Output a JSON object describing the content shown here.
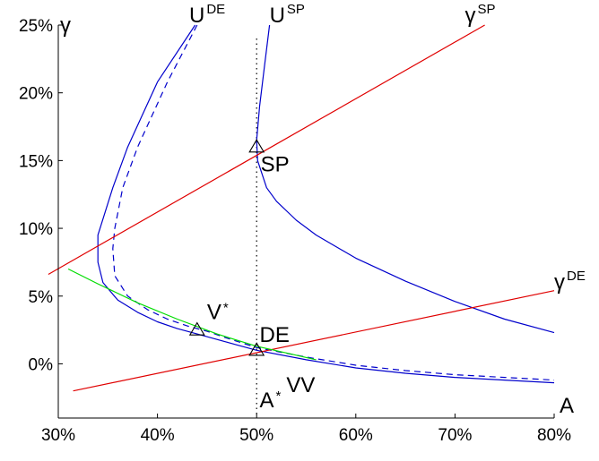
{
  "chart_data": {
    "type": "line",
    "xlabel": "A",
    "ylabel": "γ",
    "xlim": [
      0.3,
      0.8
    ],
    "ylim": [
      -0.04,
      0.25
    ],
    "x_ticks": [
      0.3,
      0.4,
      0.5,
      0.6,
      0.7,
      0.8
    ],
    "x_tick_labels": [
      "30%",
      "40%",
      "50%",
      "60%",
      "70%",
      "80%"
    ],
    "y_ticks": [
      0.0,
      0.05,
      0.1,
      0.15,
      0.2,
      0.25
    ],
    "y_tick_labels": [
      "0%",
      "5%",
      "10%",
      "15%",
      "20%",
      "25%"
    ],
    "grid": false,
    "colors": {
      "U_DE": "#0000cc",
      "U_DE_dashed": "#0000cc",
      "U_SP": "#0000cc",
      "gamma_SP": "#e00000",
      "gamma_DE": "#e00000",
      "VV": "#00dd00",
      "vertical_line": "#000000",
      "marker": "#000000"
    },
    "series": [
      {
        "key": "U_DE",
        "style": "solid",
        "points": [
          [
            0.438,
            0.25
          ],
          [
            0.4,
            0.208
          ],
          [
            0.37,
            0.16
          ],
          [
            0.355,
            0.13
          ],
          [
            0.34,
            0.095
          ],
          [
            0.34,
            0.075
          ],
          [
            0.345,
            0.06
          ],
          [
            0.36,
            0.047
          ],
          [
            0.38,
            0.038
          ],
          [
            0.4,
            0.031
          ],
          [
            0.42,
            0.026
          ],
          [
            0.44,
            0.022
          ],
          [
            0.46,
            0.018
          ],
          [
            0.48,
            0.014
          ],
          [
            0.5,
            0.01
          ],
          [
            0.55,
            0.003
          ],
          [
            0.6,
            -0.003
          ],
          [
            0.65,
            -0.007
          ],
          [
            0.7,
            -0.01
          ],
          [
            0.75,
            -0.012
          ],
          [
            0.8,
            -0.014
          ]
        ]
      },
      {
        "key": "U_DE_dashed",
        "style": "dashed",
        "points": [
          [
            0.44,
            0.25
          ],
          [
            0.41,
            0.208
          ],
          [
            0.38,
            0.16
          ],
          [
            0.365,
            0.13
          ],
          [
            0.357,
            0.1
          ],
          [
            0.355,
            0.085
          ],
          [
            0.357,
            0.065
          ],
          [
            0.37,
            0.05
          ],
          [
            0.39,
            0.04
          ],
          [
            0.41,
            0.033
          ],
          [
            0.43,
            0.028
          ],
          [
            0.45,
            0.024
          ],
          [
            0.47,
            0.019
          ],
          [
            0.5,
            0.012
          ],
          [
            0.55,
            0.005
          ],
          [
            0.6,
            -0.001
          ],
          [
            0.65,
            -0.005
          ],
          [
            0.7,
            -0.008
          ],
          [
            0.75,
            -0.01
          ],
          [
            0.8,
            -0.012
          ]
        ]
      },
      {
        "key": "U_SP",
        "style": "solid",
        "points": [
          [
            0.513,
            0.25
          ],
          [
            0.508,
            0.22
          ],
          [
            0.503,
            0.19
          ],
          [
            0.5,
            0.165
          ],
          [
            0.501,
            0.15
          ],
          [
            0.51,
            0.13
          ],
          [
            0.52,
            0.12
          ],
          [
            0.54,
            0.106
          ],
          [
            0.56,
            0.095
          ],
          [
            0.6,
            0.078
          ],
          [
            0.65,
            0.061
          ],
          [
            0.7,
            0.046
          ],
          [
            0.75,
            0.033
          ],
          [
            0.8,
            0.023
          ]
        ]
      },
      {
        "key": "gamma_SP",
        "style": "solid",
        "points": [
          [
            0.29,
            0.066
          ],
          [
            0.73,
            0.25
          ]
        ]
      },
      {
        "key": "gamma_DE",
        "style": "solid",
        "points": [
          [
            0.315,
            -0.02
          ],
          [
            0.8,
            0.054
          ]
        ]
      },
      {
        "key": "VV",
        "style": "solid",
        "points": [
          [
            0.31,
            0.07
          ],
          [
            0.34,
            0.059
          ],
          [
            0.38,
            0.045
          ],
          [
            0.42,
            0.033
          ],
          [
            0.46,
            0.022
          ],
          [
            0.5,
            0.013
          ],
          [
            0.53,
            0.008
          ],
          [
            0.56,
            0.003
          ]
        ]
      }
    ],
    "vertical_line_x": 0.5,
    "markers": [
      {
        "x": 0.5,
        "y": 0.16
      },
      {
        "x": 0.44,
        "y": 0.025
      },
      {
        "x": 0.5,
        "y": 0.01
      }
    ],
    "curve_labels": [
      {
        "key": "U_DE",
        "base": "U",
        "sup": "DE",
        "x": 0.432,
        "y": 0.252
      },
      {
        "key": "U_SP",
        "base": "U",
        "sup": "SP",
        "x": 0.513,
        "y": 0.252
      },
      {
        "key": "gamma_SP",
        "base": "γ",
        "sup": "SP",
        "x": 0.71,
        "y": 0.252
      },
      {
        "key": "gamma_DE",
        "base": "γ",
        "sup": "DE",
        "x": 0.8,
        "y": 0.055
      }
    ],
    "annotations": [
      {
        "key": "SP",
        "text": "SP",
        "x": 0.504,
        "y": 0.142
      },
      {
        "key": "DE",
        "text": "DE",
        "x": 0.503,
        "y": 0.016
      },
      {
        "key": "V_star",
        "text": "V",
        "sup": "*",
        "x": 0.45,
        "y": 0.033
      },
      {
        "key": "A_star",
        "text": "A",
        "sup": "*",
        "x": 0.503,
        "y": -0.032
      },
      {
        "key": "VV",
        "text": "VV",
        "x": 0.53,
        "y": -0.021
      }
    ]
  }
}
